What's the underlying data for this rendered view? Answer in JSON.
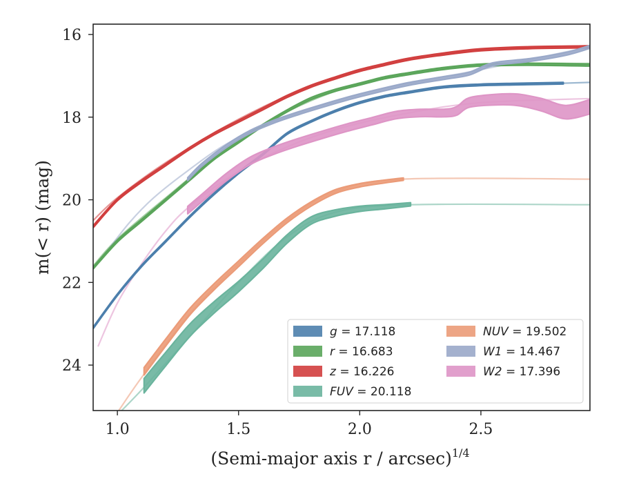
{
  "chart_data": {
    "type": "line",
    "xlabel": "(Semi-major axis r / arcsec)",
    "xlabel_exponent": "1/4",
    "ylabel": "m(< r) (mag)",
    "xlim": [
      0.9,
      2.95
    ],
    "ylim": [
      25.1,
      15.75
    ],
    "y_inverted": true,
    "x_ticks": [
      1.0,
      1.5,
      2.0,
      2.5
    ],
    "x_tick_labels": [
      "1.0",
      "1.5",
      "2.0",
      "2.5"
    ],
    "y_ticks": [
      16,
      18,
      20,
      22,
      24
    ],
    "y_tick_labels": [
      "16",
      "18",
      "20",
      "22",
      "24"
    ],
    "grid": false,
    "legend_position": "lower-right",
    "legend_columns": 2,
    "series": [
      {
        "name": "g",
        "label": "g = 17.118",
        "color": "#4c7fac",
        "band_width_mag": 0.04,
        "points": [
          [
            0.9,
            23.1
          ],
          [
            1.0,
            22.3
          ],
          [
            1.1,
            21.6
          ],
          [
            1.2,
            21.0
          ],
          [
            1.3,
            20.4
          ],
          [
            1.4,
            19.85
          ],
          [
            1.5,
            19.35
          ],
          [
            1.6,
            18.9
          ],
          [
            1.7,
            18.4
          ],
          [
            1.8,
            18.1
          ],
          [
            1.9,
            17.85
          ],
          [
            2.0,
            17.65
          ],
          [
            2.1,
            17.5
          ],
          [
            2.2,
            17.4
          ],
          [
            2.35,
            17.27
          ],
          [
            2.5,
            17.22
          ],
          [
            2.65,
            17.2
          ],
          [
            2.84,
            17.18
          ]
        ],
        "model": [
          [
            2.84,
            17.18
          ],
          [
            2.95,
            17.16
          ]
        ]
      },
      {
        "name": "r",
        "label": "r = 16.683",
        "color": "#5aa55a",
        "band_width_mag": 0.05,
        "points": [
          [
            0.9,
            21.65
          ],
          [
            1.0,
            21.0
          ],
          [
            1.1,
            20.5
          ],
          [
            1.2,
            20.0
          ],
          [
            1.3,
            19.5
          ],
          [
            1.4,
            19.0
          ],
          [
            1.5,
            18.6
          ],
          [
            1.6,
            18.2
          ],
          [
            1.7,
            17.85
          ],
          [
            1.8,
            17.55
          ],
          [
            1.9,
            17.35
          ],
          [
            2.0,
            17.2
          ],
          [
            2.1,
            17.05
          ],
          [
            2.2,
            16.95
          ],
          [
            2.35,
            16.82
          ],
          [
            2.5,
            16.74
          ],
          [
            2.7,
            16.72
          ],
          [
            2.95,
            16.74
          ]
        ],
        "model": [
          [
            0.9,
            21.6
          ],
          [
            1.0,
            20.95
          ],
          [
            1.2,
            19.95
          ],
          [
            1.5,
            18.55
          ],
          [
            1.8,
            17.6
          ],
          [
            2.1,
            17.05
          ],
          [
            2.5,
            16.73
          ],
          [
            2.95,
            16.7
          ]
        ]
      },
      {
        "name": "z",
        "label": "z = 16.226",
        "color": "#d13e3e",
        "band_width_mag": 0.05,
        "points": [
          [
            0.9,
            20.65
          ],
          [
            1.0,
            20.0
          ],
          [
            1.1,
            19.55
          ],
          [
            1.2,
            19.15
          ],
          [
            1.3,
            18.75
          ],
          [
            1.4,
            18.4
          ],
          [
            1.5,
            18.1
          ],
          [
            1.6,
            17.8
          ],
          [
            1.7,
            17.5
          ],
          [
            1.8,
            17.25
          ],
          [
            1.9,
            17.05
          ],
          [
            2.0,
            16.87
          ],
          [
            2.1,
            16.73
          ],
          [
            2.2,
            16.6
          ],
          [
            2.35,
            16.47
          ],
          [
            2.5,
            16.37
          ],
          [
            2.7,
            16.32
          ],
          [
            2.95,
            16.3
          ]
        ],
        "model": [
          [
            0.9,
            20.5
          ],
          [
            1.0,
            19.95
          ],
          [
            1.2,
            19.1
          ],
          [
            1.5,
            18.05
          ],
          [
            1.8,
            17.25
          ],
          [
            2.1,
            16.72
          ],
          [
            2.5,
            16.38
          ],
          [
            2.95,
            16.27
          ]
        ]
      },
      {
        "name": "FUV",
        "label": "FUV = 20.118",
        "color": "#6ab49d",
        "band_width_mag": 0.35,
        "band_width_end_mag": 0.08,
        "points": [
          [
            1.11,
            24.5
          ],
          [
            1.2,
            23.85
          ],
          [
            1.3,
            23.15
          ],
          [
            1.4,
            22.6
          ],
          [
            1.5,
            22.1
          ],
          [
            1.6,
            21.55
          ],
          [
            1.7,
            20.95
          ],
          [
            1.8,
            20.5
          ],
          [
            1.9,
            20.32
          ],
          [
            2.0,
            20.22
          ],
          [
            2.1,
            20.17
          ],
          [
            2.21,
            20.11
          ]
        ],
        "model": [
          [
            0.95,
            25.5
          ],
          [
            1.1,
            24.6
          ],
          [
            1.3,
            23.3
          ],
          [
            1.5,
            22.0
          ],
          [
            1.7,
            20.9
          ],
          [
            1.9,
            20.3
          ],
          [
            2.21,
            20.12
          ],
          [
            2.95,
            20.12
          ]
        ]
      },
      {
        "name": "NUV",
        "label": "NUV = 19.502",
        "color": "#eb9b78",
        "band_width_mag": 0.18,
        "band_width_end_mag": 0.06,
        "points": [
          [
            1.11,
            24.15
          ],
          [
            1.2,
            23.45
          ],
          [
            1.3,
            22.7
          ],
          [
            1.4,
            22.1
          ],
          [
            1.5,
            21.55
          ],
          [
            1.6,
            21.0
          ],
          [
            1.7,
            20.5
          ],
          [
            1.8,
            20.1
          ],
          [
            1.9,
            19.8
          ],
          [
            2.0,
            19.65
          ],
          [
            2.1,
            19.56
          ],
          [
            2.18,
            19.5
          ]
        ],
        "model": [
          [
            1.0,
            25.15
          ],
          [
            1.1,
            24.3
          ],
          [
            1.3,
            22.75
          ],
          [
            1.5,
            21.55
          ],
          [
            1.7,
            20.5
          ],
          [
            1.9,
            19.8
          ],
          [
            2.18,
            19.5
          ],
          [
            2.95,
            19.5
          ]
        ]
      },
      {
        "name": "W1",
        "label": "W1 = 14.467",
        "color": "#9aa9c9",
        "band_width_mag": 0.07,
        "points": [
          [
            1.29,
            19.5
          ],
          [
            1.35,
            19.15
          ],
          [
            1.45,
            18.7
          ],
          [
            1.55,
            18.35
          ],
          [
            1.65,
            18.1
          ],
          [
            1.75,
            17.9
          ],
          [
            1.85,
            17.72
          ],
          [
            1.95,
            17.55
          ],
          [
            2.05,
            17.4
          ],
          [
            2.2,
            17.2
          ],
          [
            2.35,
            17.05
          ],
          [
            2.45,
            16.95
          ],
          [
            2.55,
            16.72
          ],
          [
            2.7,
            16.62
          ],
          [
            2.85,
            16.47
          ],
          [
            2.95,
            16.3
          ]
        ],
        "model": [
          [
            0.95,
            21.3
          ],
          [
            1.05,
            20.55
          ],
          [
            1.15,
            19.95
          ],
          [
            1.29,
            19.3
          ],
          [
            1.45,
            18.65
          ],
          [
            1.65,
            18.1
          ],
          [
            1.85,
            17.7
          ],
          [
            2.1,
            17.3
          ],
          [
            2.5,
            16.85
          ],
          [
            2.95,
            16.3
          ]
        ]
      },
      {
        "name": "W2",
        "label": "W2 = 17.396",
        "color": "#de95c6",
        "band_width_mag": 0.18,
        "band_width_peak_mag": 0.35,
        "points": [
          [
            1.29,
            20.25
          ],
          [
            1.35,
            19.95
          ],
          [
            1.45,
            19.45
          ],
          [
            1.55,
            19.05
          ],
          [
            1.65,
            18.8
          ],
          [
            1.75,
            18.6
          ],
          [
            1.85,
            18.42
          ],
          [
            1.95,
            18.25
          ],
          [
            2.05,
            18.1
          ],
          [
            2.15,
            17.95
          ],
          [
            2.25,
            17.9
          ],
          [
            2.35,
            17.9
          ],
          [
            2.4,
            17.85
          ],
          [
            2.45,
            17.65
          ],
          [
            2.55,
            17.58
          ],
          [
            2.65,
            17.58
          ],
          [
            2.75,
            17.7
          ],
          [
            2.85,
            17.88
          ],
          [
            2.95,
            17.75
          ]
        ],
        "model": [
          [
            0.92,
            23.55
          ],
          [
            1.0,
            22.5
          ],
          [
            1.1,
            21.55
          ],
          [
            1.2,
            20.75
          ],
          [
            1.29,
            20.2
          ],
          [
            1.45,
            19.5
          ],
          [
            1.65,
            18.85
          ],
          [
            1.9,
            18.3
          ],
          [
            2.2,
            17.9
          ],
          [
            2.5,
            17.65
          ],
          [
            2.95,
            17.55
          ]
        ]
      }
    ]
  }
}
